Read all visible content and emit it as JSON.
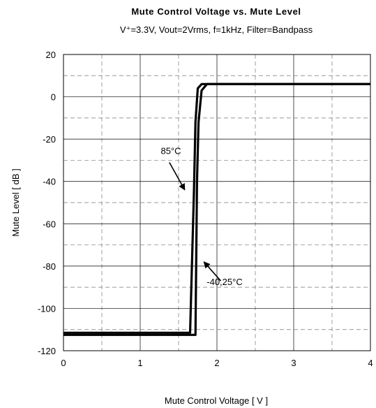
{
  "chart_data": {
    "type": "line",
    "title": "Mute Control Voltage vs. Mute Level",
    "subtitle": "V⁺=3.3V, Vout=2Vrms, f=1kHz, Filter=Bandpass",
    "xlabel": "Mute Control Voltage [ V ]",
    "ylabel": "Mute Level [ dB ]",
    "xlim": [
      0,
      4
    ],
    "ylim": [
      -120,
      20
    ],
    "x_ticks": [
      0,
      1,
      2,
      3,
      4
    ],
    "x_tick_labels": [
      "0",
      "1",
      "2",
      "3",
      "4"
    ],
    "y_ticks": [
      20,
      0,
      -20,
      -40,
      -60,
      -80,
      -100,
      -120
    ],
    "y_tick_labels": [
      "20",
      "0",
      "-20",
      "-40",
      "-60",
      "-80",
      "-100",
      "-120"
    ],
    "grid": true,
    "series": [
      {
        "name": "85°C",
        "color": "#000000",
        "points": [
          [
            0,
            -111.5
          ],
          [
            1.65,
            -111.5
          ],
          [
            1.7,
            -45
          ],
          [
            1.72,
            -12
          ],
          [
            1.75,
            4
          ],
          [
            1.8,
            6
          ],
          [
            4,
            6
          ]
        ]
      },
      {
        "name": "-40,25°C",
        "color": "#000000",
        "points": [
          [
            0,
            -112.5
          ],
          [
            1.72,
            -112.5
          ],
          [
            1.74,
            -40
          ],
          [
            1.76,
            -12
          ],
          [
            1.8,
            3
          ],
          [
            1.87,
            6
          ],
          [
            4,
            6
          ]
        ]
      }
    ],
    "annotations": [
      {
        "text": "85°C",
        "label_at": [
          1.4,
          -27
        ],
        "arrow_from": [
          1.38,
          -31
        ],
        "arrow_to": [
          1.58,
          -44
        ]
      },
      {
        "text": "-40,25°C",
        "label_at": [
          2.1,
          -89
        ],
        "arrow_from": [
          2.05,
          -87
        ],
        "arrow_to": [
          1.83,
          -78
        ]
      }
    ]
  }
}
